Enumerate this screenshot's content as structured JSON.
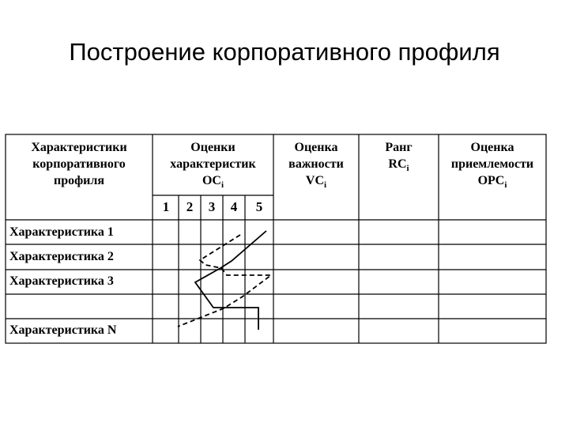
{
  "title": "Построение корпоративного профиля",
  "headers": {
    "characteristics": [
      "Характеристики",
      "корпоративного",
      "профиля"
    ],
    "scores": [
      "Оценки",
      "характеристик"
    ],
    "scores_sym": "OC",
    "importance": [
      "Оценка",
      "важности"
    ],
    "importance_sym": "VC",
    "rank": "Ранг",
    "rank_sym": "RC",
    "acceptability": [
      "Оценка",
      "приемлемости"
    ],
    "acceptability_sym": "OPC",
    "subscript": "i"
  },
  "score_scale": [
    "1",
    "2",
    "3",
    "4",
    "5"
  ],
  "rows": [
    "Характеристика 1",
    "Характеристика 2",
    "Характеристика 3",
    "",
    "Характеристика N"
  ]
}
